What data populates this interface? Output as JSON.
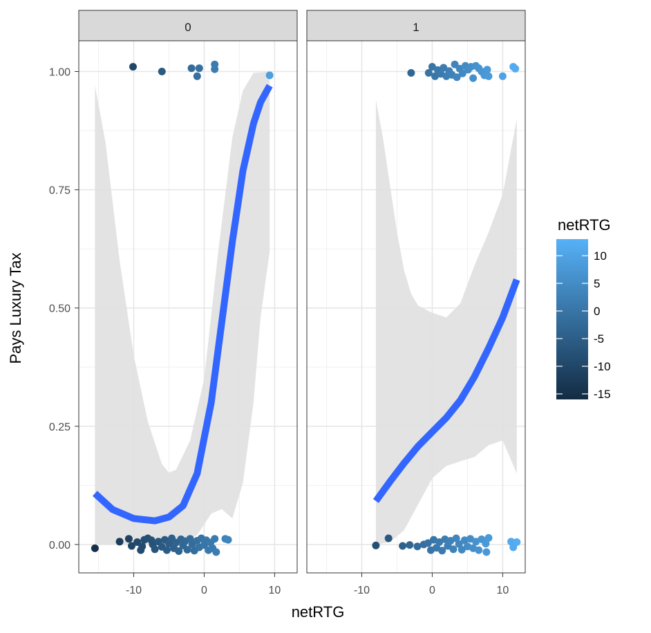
{
  "chart_data": {
    "type": "scatter",
    "facet_var": "",
    "facets": [
      {
        "strip_label": "0",
        "points": [
          {
            "x": -10.1,
            "y": 1.01,
            "c": -10
          },
          {
            "x": -6,
            "y": 1.0,
            "c": -6
          },
          {
            "x": -1.8,
            "y": 1.007,
            "c": -2
          },
          {
            "x": -0.7,
            "y": 1.007,
            "c": -1
          },
          {
            "x": -1,
            "y": 0.99,
            "c": -1
          },
          {
            "x": 1.5,
            "y": 1.015,
            "c": 1.5
          },
          {
            "x": 1.5,
            "y": 1.005,
            "c": 1.5
          },
          {
            "x": 9.3,
            "y": 0.992,
            "c": 9
          },
          {
            "x": -15.5,
            "y": -0.008,
            "c": -15
          },
          {
            "x": -10.7,
            "y": 0.012,
            "c": -11
          },
          {
            "x": -10.3,
            "y": -0.003,
            "c": -10
          },
          {
            "x": -9.5,
            "y": 0.005,
            "c": -9.5
          },
          {
            "x": -9,
            "y": -0.012,
            "c": -9
          },
          {
            "x": -8.5,
            "y": 0.01,
            "c": -8.5
          },
          {
            "x": -8,
            "y": 0.013,
            "c": -8
          },
          {
            "x": -7.5,
            "y": 0.009,
            "c": -7.5
          },
          {
            "x": -7.3,
            "y": 0.0,
            "c": -7.3
          },
          {
            "x": -7,
            "y": -0.01,
            "c": -7
          },
          {
            "x": -6.5,
            "y": 0.006,
            "c": -6.5
          },
          {
            "x": -6,
            "y": -0.005,
            "c": -6
          },
          {
            "x": -5.6,
            "y": 0.01,
            "c": -5.6
          },
          {
            "x": -5.3,
            "y": -0.012,
            "c": -5.3
          },
          {
            "x": -5,
            "y": 0.002,
            "c": -5
          },
          {
            "x": -4.6,
            "y": 0.013,
            "c": -4.6
          },
          {
            "x": -4.3,
            "y": -0.008,
            "c": -4.3
          },
          {
            "x": -4,
            "y": 0.004,
            "c": -4
          },
          {
            "x": -3.6,
            "y": -0.014,
            "c": -3.6
          },
          {
            "x": -3.3,
            "y": 0.011,
            "c": -3.3
          },
          {
            "x": -3,
            "y": -0.002,
            "c": -3
          },
          {
            "x": -2.7,
            "y": 0.007,
            "c": -2.7
          },
          {
            "x": -2.4,
            "y": -0.011,
            "c": -2.4
          },
          {
            "x": -2,
            "y": 0.012,
            "c": -2
          },
          {
            "x": -1.7,
            "y": 0.0,
            "c": -1.7
          },
          {
            "x": -1.4,
            "y": -0.013,
            "c": -1.4
          },
          {
            "x": -1,
            "y": 0.008,
            "c": -1
          },
          {
            "x": -0.7,
            "y": -0.006,
            "c": -0.7
          },
          {
            "x": -0.4,
            "y": 0.013,
            "c": -0.4
          },
          {
            "x": 0,
            "y": -0.001,
            "c": 0
          },
          {
            "x": 0.3,
            "y": 0.009,
            "c": 0.3
          },
          {
            "x": 0.6,
            "y": -0.012,
            "c": 0.6
          },
          {
            "x": 0.9,
            "y": 0.004,
            "c": 0.9
          },
          {
            "x": 1.2,
            "y": -0.008,
            "c": 1.2
          },
          {
            "x": 1.5,
            "y": 0.012,
            "c": 1.5
          },
          {
            "x": 1.7,
            "y": -0.016,
            "c": 1.7
          },
          {
            "x": -12,
            "y": 0.006,
            "c": -12
          },
          {
            "x": -8.8,
            "y": -0.004,
            "c": -8.8
          },
          {
            "x": 3,
            "y": 0.012,
            "c": 3
          },
          {
            "x": 3.4,
            "y": 0.01,
            "c": 3.4
          }
        ],
        "fit": [
          {
            "x": -15.5,
            "y": 0.108
          },
          {
            "x": -13,
            "y": 0.074
          },
          {
            "x": -10,
            "y": 0.055
          },
          {
            "x": -7,
            "y": 0.05
          },
          {
            "x": -5,
            "y": 0.058
          },
          {
            "x": -3,
            "y": 0.082
          },
          {
            "x": -1,
            "y": 0.15
          },
          {
            "x": 1,
            "y": 0.3
          },
          {
            "x": 2.5,
            "y": 0.47
          },
          {
            "x": 4,
            "y": 0.64
          },
          {
            "x": 5.5,
            "y": 0.79
          },
          {
            "x": 7,
            "y": 0.89
          },
          {
            "x": 8,
            "y": 0.935
          },
          {
            "x": 9.3,
            "y": 0.97
          }
        ],
        "ci_upper": [
          {
            "x": -15.5,
            "y": 0.97
          },
          {
            "x": -14,
            "y": 0.85
          },
          {
            "x": -12,
            "y": 0.6
          },
          {
            "x": -10,
            "y": 0.4
          },
          {
            "x": -8,
            "y": 0.26
          },
          {
            "x": -6,
            "y": 0.17
          },
          {
            "x": -5,
            "y": 0.152
          },
          {
            "x": -4,
            "y": 0.158
          },
          {
            "x": -2,
            "y": 0.22
          },
          {
            "x": 0,
            "y": 0.35
          },
          {
            "x": 2,
            "y": 0.62
          },
          {
            "x": 4,
            "y": 0.86
          },
          {
            "x": 5.5,
            "y": 0.96
          },
          {
            "x": 7,
            "y": 0.997
          },
          {
            "x": 9.3,
            "y": 1.0
          }
        ],
        "ci_lower": [
          {
            "x": -15.5,
            "y": 0.0
          },
          {
            "x": -10,
            "y": 0.0
          },
          {
            "x": -5,
            "y": 0.0
          },
          {
            "x": -3,
            "y": 0.003
          },
          {
            "x": -1,
            "y": 0.02
          },
          {
            "x": 1,
            "y": 0.065
          },
          {
            "x": 2.5,
            "y": 0.075
          },
          {
            "x": 4,
            "y": 0.055
          },
          {
            "x": 5.5,
            "y": 0.13
          },
          {
            "x": 7,
            "y": 0.3
          },
          {
            "x": 8,
            "y": 0.48
          },
          {
            "x": 9.3,
            "y": 0.62
          }
        ]
      },
      {
        "strip_label": "1",
        "points": [
          {
            "x": -3,
            "y": 0.997,
            "c": -3
          },
          {
            "x": -0.5,
            "y": 0.997,
            "c": -0.5
          },
          {
            "x": 0,
            "y": 1.01,
            "c": 0
          },
          {
            "x": 0.4,
            "y": 0.99,
            "c": 0.4
          },
          {
            "x": 0.8,
            "y": 1.003,
            "c": 0.8
          },
          {
            "x": 1.2,
            "y": 0.995,
            "c": 1.2
          },
          {
            "x": 1.6,
            "y": 1.008,
            "c": 1.6
          },
          {
            "x": 2,
            "y": 0.99,
            "c": 2
          },
          {
            "x": 2.4,
            "y": 1.001,
            "c": 2.4
          },
          {
            "x": 2.8,
            "y": 0.993,
            "c": 2.8
          },
          {
            "x": 3.2,
            "y": 1.015,
            "c": 3.2
          },
          {
            "x": 3.5,
            "y": 0.988,
            "c": 3.5
          },
          {
            "x": 3.9,
            "y": 1.006,
            "c": 3.9
          },
          {
            "x": 4.3,
            "y": 0.996,
            "c": 4.3
          },
          {
            "x": 4.7,
            "y": 1.012,
            "c": 4.7
          },
          {
            "x": 5.1,
            "y": 1.004,
            "c": 5.1
          },
          {
            "x": 5.5,
            "y": 1.01,
            "c": 5.5
          },
          {
            "x": 5.8,
            "y": 0.986,
            "c": 5.8
          },
          {
            "x": 6.2,
            "y": 1.012,
            "c": 6.2
          },
          {
            "x": 6.6,
            "y": 1.007,
            "c": 6.6
          },
          {
            "x": 7,
            "y": 1.0,
            "c": 7
          },
          {
            "x": 7.4,
            "y": 0.992,
            "c": 7.4
          },
          {
            "x": 7.8,
            "y": 1.004,
            "c": 7.8
          },
          {
            "x": 8,
            "y": 0.99,
            "c": 8
          },
          {
            "x": 10,
            "y": 0.99,
            "c": 10
          },
          {
            "x": 11.5,
            "y": 1.01,
            "c": 11.5
          },
          {
            "x": 11.8,
            "y": 1.006,
            "c": 11.8
          },
          {
            "x": -8,
            "y": -0.002,
            "c": -8
          },
          {
            "x": -6.2,
            "y": 0.013,
            "c": -6.2
          },
          {
            "x": -4.2,
            "y": -0.003,
            "c": -4.2
          },
          {
            "x": -3.2,
            "y": -0.001,
            "c": -3.2
          },
          {
            "x": -2.1,
            "y": -0.004,
            "c": -2.1
          },
          {
            "x": -1.2,
            "y": 0.0,
            "c": -1.2
          },
          {
            "x": -0.6,
            "y": 0.003,
            "c": -0.6
          },
          {
            "x": -0.2,
            "y": -0.012,
            "c": -0.2
          },
          {
            "x": 0.2,
            "y": 0.01,
            "c": 0.2
          },
          {
            "x": 0.6,
            "y": -0.007,
            "c": 0.6
          },
          {
            "x": 1,
            "y": 0.005,
            "c": 1
          },
          {
            "x": 1.4,
            "y": -0.013,
            "c": 1.4
          },
          {
            "x": 1.8,
            "y": 0.011,
            "c": 1.8
          },
          {
            "x": 2.2,
            "y": -0.003,
            "c": 2.2
          },
          {
            "x": 2.6,
            "y": 0.008,
            "c": 2.6
          },
          {
            "x": 3,
            "y": -0.01,
            "c": 3
          },
          {
            "x": 3.4,
            "y": 0.013,
            "c": 3.4
          },
          {
            "x": 3.8,
            "y": 0.001,
            "c": 3.8
          },
          {
            "x": 4.2,
            "y": -0.011,
            "c": 4.2
          },
          {
            "x": 4.6,
            "y": 0.009,
            "c": 4.6
          },
          {
            "x": 5,
            "y": -0.004,
            "c": 5
          },
          {
            "x": 5.4,
            "y": 0.012,
            "c": 5.4
          },
          {
            "x": 5.8,
            "y": -0.008,
            "c": 5.8
          },
          {
            "x": 6.2,
            "y": 0.006,
            "c": 6.2
          },
          {
            "x": 6.6,
            "y": -0.012,
            "c": 6.6
          },
          {
            "x": 7,
            "y": 0.011,
            "c": 7
          },
          {
            "x": 7.6,
            "y": 0.002,
            "c": 7.6
          },
          {
            "x": 8,
            "y": 0.014,
            "c": 8
          },
          {
            "x": 7.7,
            "y": -0.016,
            "c": 7.7
          },
          {
            "x": 11.2,
            "y": 0.006,
            "c": 11.2
          },
          {
            "x": 11.5,
            "y": -0.006,
            "c": 11.5
          },
          {
            "x": 12,
            "y": 0.005,
            "c": 12
          }
        ],
        "fit": [
          {
            "x": -8,
            "y": 0.092
          },
          {
            "x": -6,
            "y": 0.133
          },
          {
            "x": -4,
            "y": 0.172
          },
          {
            "x": -2,
            "y": 0.208
          },
          {
            "x": 0,
            "y": 0.238
          },
          {
            "x": 2,
            "y": 0.268
          },
          {
            "x": 4,
            "y": 0.305
          },
          {
            "x": 6,
            "y": 0.355
          },
          {
            "x": 8,
            "y": 0.415
          },
          {
            "x": 10,
            "y": 0.48
          },
          {
            "x": 12,
            "y": 0.56
          }
        ],
        "ci_upper": [
          {
            "x": -8,
            "y": 0.94
          },
          {
            "x": -7,
            "y": 0.86
          },
          {
            "x": -6,
            "y": 0.76
          },
          {
            "x": -5,
            "y": 0.66
          },
          {
            "x": -4,
            "y": 0.58
          },
          {
            "x": -3,
            "y": 0.53
          },
          {
            "x": -2,
            "y": 0.505
          },
          {
            "x": 0,
            "y": 0.49
          },
          {
            "x": 2,
            "y": 0.48
          },
          {
            "x": 4,
            "y": 0.51
          },
          {
            "x": 6,
            "y": 0.59
          },
          {
            "x": 8,
            "y": 0.66
          },
          {
            "x": 10,
            "y": 0.74
          },
          {
            "x": 12,
            "y": 0.9
          }
        ],
        "ci_lower": [
          {
            "x": -8,
            "y": 0.0
          },
          {
            "x": -6,
            "y": 0.005
          },
          {
            "x": -4,
            "y": 0.03
          },
          {
            "x": -2,
            "y": 0.085
          },
          {
            "x": 0,
            "y": 0.14
          },
          {
            "x": 2,
            "y": 0.166
          },
          {
            "x": 4,
            "y": 0.176
          },
          {
            "x": 6,
            "y": 0.185
          },
          {
            "x": 8,
            "y": 0.21
          },
          {
            "x": 10,
            "y": 0.22
          },
          {
            "x": 12,
            "y": 0.15
          }
        ]
      }
    ],
    "x_ticks": [
      -10,
      0,
      10
    ],
    "x_tick_labels": [
      "-10",
      "0",
      "10"
    ],
    "y_ticks": [
      0,
      0.25,
      0.5,
      0.75,
      1.0
    ],
    "y_tick_labels": [
      "0.00",
      "0.25",
      "0.50",
      "0.75",
      "1.00"
    ],
    "xlim": [
      -17.8,
      13.2
    ],
    "ylim": [
      -0.06,
      1.065
    ],
    "xlabel": "netRTG",
    "ylabel": "Pays Luxury Tax",
    "legend": {
      "title": "netRTG",
      "range": [
        -16,
        13
      ],
      "ticks": [
        10,
        5,
        0,
        -5,
        -10,
        -15
      ],
      "tick_labels": [
        "10",
        "5",
        "0",
        "-5",
        "-10",
        "-15"
      ],
      "low_color": "#132B43",
      "high_color": "#56B1F7"
    },
    "fit_color": "#3366FF",
    "ribbon_color": "#e0e0e0",
    "grid": true,
    "legend_position": "right"
  }
}
